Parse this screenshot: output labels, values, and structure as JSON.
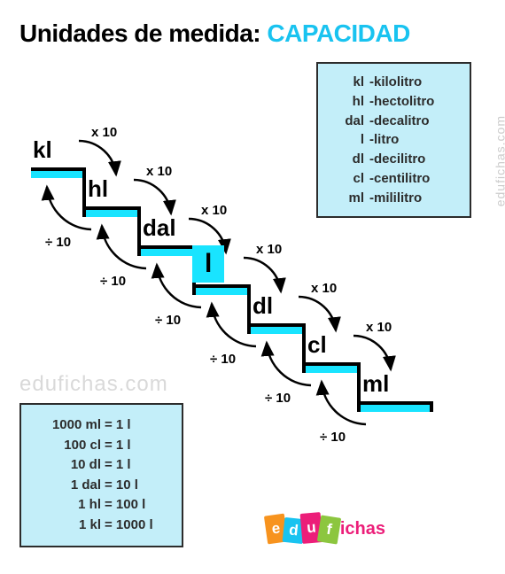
{
  "title": {
    "prefix": "Unidades de medida:",
    "highlight": "CAPACIDAD"
  },
  "colors": {
    "cyan": "#19c3f0",
    "step_fill": "#19e4ff",
    "legend_bg": "#c3eef9",
    "border": "#2c2c2c",
    "watermark": "#d9d9d9",
    "logo_blocks": [
      "#f7931e",
      "#19c3f0",
      "#ec1e79",
      "#8cc63f"
    ],
    "logo_text": "#ec1e79"
  },
  "units": [
    {
      "abbr": "kl",
      "name": "kilolitro"
    },
    {
      "abbr": "hl",
      "name": "hectolitro"
    },
    {
      "abbr": "dal",
      "name": "decalitro"
    },
    {
      "abbr": "l",
      "name": "litro"
    },
    {
      "abbr": "dl",
      "name": "decilitro"
    },
    {
      "abbr": "cl",
      "name": "centilitro"
    },
    {
      "abbr": "ml",
      "name": "mililitro"
    }
  ],
  "conversions": [
    {
      "lhs": "1000 ml",
      "rhs": "= 1 l"
    },
    {
      "lhs": "100 cl",
      "rhs": "= 1 l"
    },
    {
      "lhs": "10 dl",
      "rhs": "= 1 l"
    },
    {
      "lhs": "1 dal",
      "rhs": "= 10 l"
    },
    {
      "lhs": "1 hl",
      "rhs": "= 100 l"
    },
    {
      "lhs": "1 kl",
      "rhs": "= 1000 l"
    }
  ],
  "stair_labels": [
    "kl",
    "hl",
    "dal",
    "l",
    "dl",
    "cl",
    "ml"
  ],
  "highlight_index": 3,
  "multiply_label": "x 10",
  "divide_label": "÷ 10",
  "watermark": "edufichas.com",
  "logo": {
    "blocks": [
      "e",
      "d",
      "u",
      "f"
    ],
    "rest": "ichas"
  },
  "layout": {
    "step_width": 62,
    "step_drop": 44,
    "step_start_x": 10,
    "step_start_y": 34
  }
}
